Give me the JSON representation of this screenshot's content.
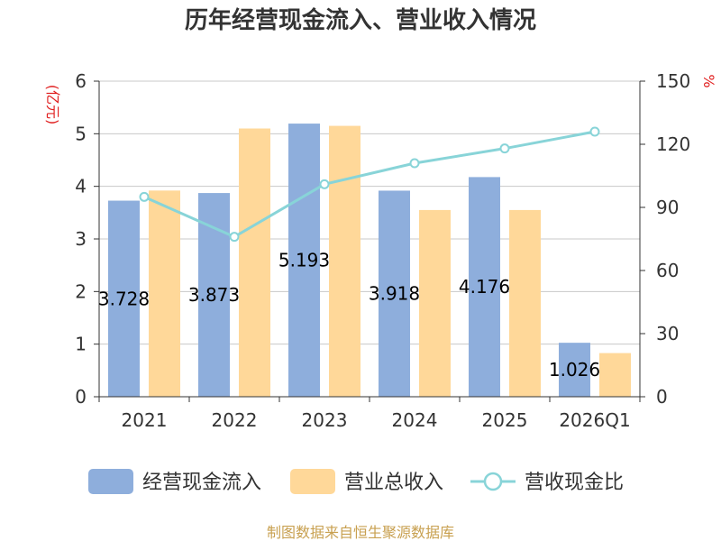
{
  "chart_data": {
    "type": "bar",
    "title": "历年经营现金流入、营业收入情况",
    "left_unit": "(亿元)",
    "right_unit": "%",
    "categories": [
      "2021",
      "2022",
      "2023",
      "2024",
      "2025",
      "2026Q1"
    ],
    "ylim_left": [
      0,
      6
    ],
    "yticks_left": [
      0,
      1,
      2,
      3,
      4,
      5,
      6
    ],
    "ylim_right": [
      0,
      150
    ],
    "yticks_right": [
      0,
      30,
      60,
      90,
      120,
      150
    ],
    "grid": true,
    "legend_position": "bottom",
    "series": [
      {
        "name": "经营现金流入",
        "type": "bar",
        "axis": "left",
        "color": "#8eaedc",
        "values": [
          3.728,
          3.873,
          5.193,
          3.918,
          4.176,
          1.026
        ],
        "labels": [
          "3.728",
          "3.873",
          "5.193",
          "3.918",
          "4.176",
          "1.026"
        ]
      },
      {
        "name": "营业总收入",
        "type": "bar",
        "axis": "left",
        "color": "#ffd899",
        "values": [
          3.92,
          5.1,
          5.15,
          3.55,
          3.55,
          0.83
        ]
      },
      {
        "name": "营收现金比",
        "type": "line",
        "axis": "right",
        "color": "#88d4d8",
        "values": [
          95,
          76,
          101,
          111,
          118,
          126
        ]
      }
    ]
  },
  "footer": {
    "source": "制图数据来自恒生聚源数据库"
  }
}
